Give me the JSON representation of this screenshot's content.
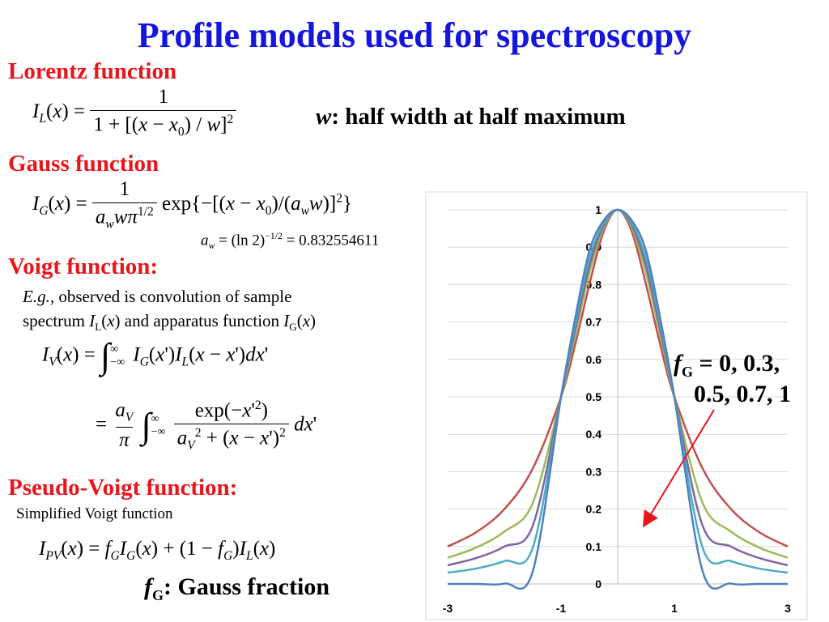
{
  "slide": {
    "title": "Profile models used for spectroscopy",
    "title_color": "#1515e0",
    "accent_color": "#e8151b",
    "lorentz": {
      "heading": "Lorentz function",
      "note_symbol": "w",
      "note_text": ": half width at half maximum"
    },
    "gauss": {
      "heading": "Gauss function",
      "aw_value": "= 0.832554611"
    },
    "voigt": {
      "heading": "Voigt function:",
      "desc_eg": "E.g.",
      "desc_1": ", observed is convolution of sample",
      "desc_2_pre": "spectrum ",
      "desc_2_mid": " and apparatus function "
    },
    "pseudo": {
      "heading": "Pseudo-Voigt function:",
      "desc": "Simplified Voigt function",
      "fg_label": ": Gauss fraction"
    },
    "annotation": {
      "line1": "= 0, 0.3,",
      "line2": "0.5, 0.7, 1"
    }
  },
  "chart_data": {
    "type": "line",
    "title": "",
    "xlabel": "",
    "ylabel": "",
    "xlim": [
      -3.0,
      3.0
    ],
    "ylim": [
      0,
      1
    ],
    "x_ticks": [
      "-3",
      "-1",
      "1",
      "3"
    ],
    "y_ticks": [
      "0",
      "0.1",
      "0.2",
      "0.3",
      "0.4",
      "0.5",
      "0.6",
      "0.7",
      "0.8",
      "0.9",
      "1"
    ],
    "grid": "horizontal",
    "x": [
      -3.0,
      -2.5,
      -2.0,
      -1.5,
      -1.0,
      -0.75,
      -0.5,
      -0.25,
      0.0,
      0.25,
      0.5,
      0.75,
      1.0,
      1.5,
      2.0,
      2.5,
      3.0
    ],
    "series": [
      {
        "fg": "0",
        "color": "#c0504d",
        "values": [
          0.1,
          0.138,
          0.2,
          0.308,
          0.5,
          0.64,
          0.8,
          0.941,
          1.0,
          0.941,
          0.8,
          0.64,
          0.5,
          0.308,
          0.2,
          0.138,
          0.1
        ]
      },
      {
        "fg": "0.3",
        "color": "#9bbb59",
        "values": [
          0.07,
          0.097,
          0.14,
          0.216,
          0.5,
          0.665,
          0.83,
          0.951,
          1.0,
          0.951,
          0.83,
          0.665,
          0.5,
          0.216,
          0.14,
          0.097,
          0.07
        ]
      },
      {
        "fg": "0.5",
        "color": "#8064a2",
        "values": [
          0.05,
          0.069,
          0.1,
          0.155,
          0.5,
          0.68,
          0.85,
          0.958,
          1.0,
          0.958,
          0.85,
          0.68,
          0.5,
          0.155,
          0.1,
          0.069,
          0.05
        ]
      },
      {
        "fg": "0.7",
        "color": "#4bacc6",
        "values": [
          0.03,
          0.041,
          0.061,
          0.096,
          0.5,
          0.695,
          0.87,
          0.964,
          1.0,
          0.964,
          0.87,
          0.695,
          0.5,
          0.096,
          0.061,
          0.041,
          0.03
        ]
      },
      {
        "fg": "1",
        "color": "#4f81bd",
        "values": [
          0.0,
          0.0,
          0.001,
          0.033,
          0.5,
          0.71,
          0.89,
          0.971,
          1.0,
          0.971,
          0.89,
          0.71,
          0.5,
          0.033,
          0.001,
          0.0,
          0.0
        ]
      }
    ]
  }
}
